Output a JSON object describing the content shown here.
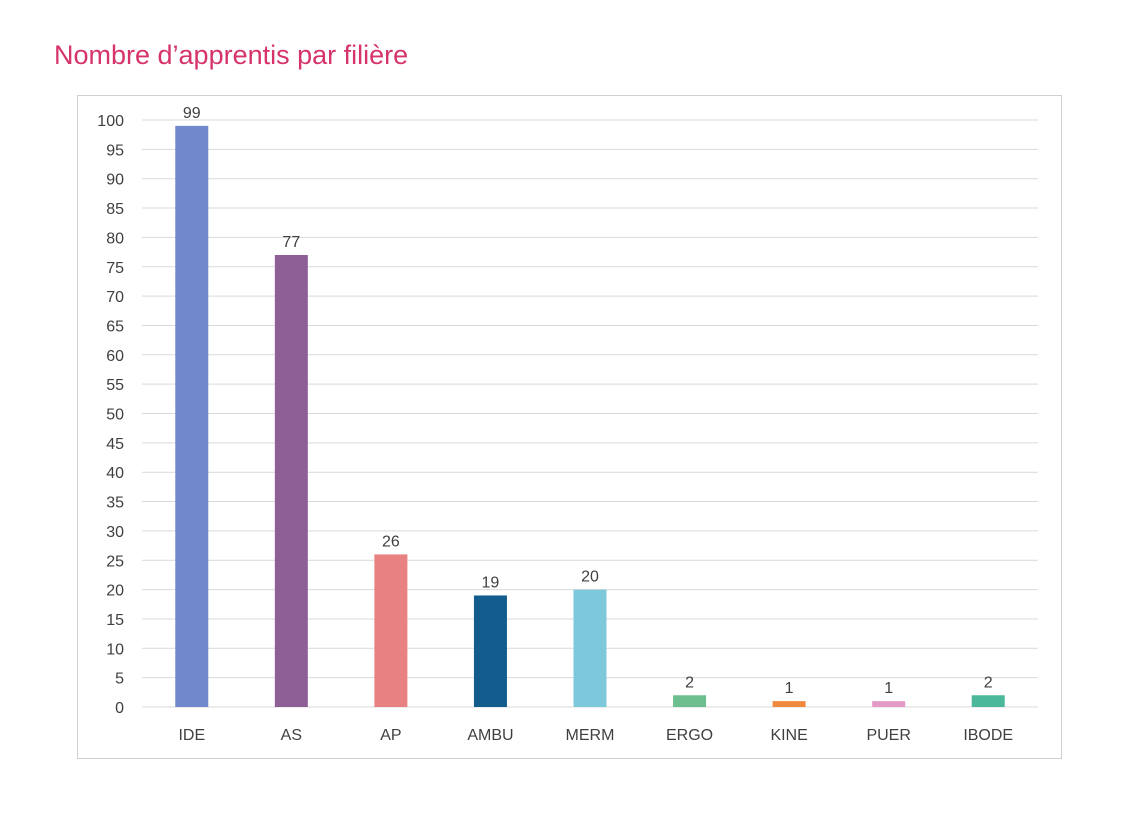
{
  "chart_data": {
    "type": "bar",
    "title": "Nombre d’apprentis par filière",
    "xlabel": "",
    "ylabel": "",
    "categories": [
      "IDE",
      "AS",
      "AP",
      "AMBU",
      "MERM",
      "ERGO",
      "KINE",
      "PUER",
      "IBODE"
    ],
    "values": [
      99,
      77,
      26,
      19,
      20,
      2,
      1,
      1,
      2
    ],
    "colors": [
      "#7089cc",
      "#8e5f96",
      "#e88282",
      "#135d8e",
      "#7ec8dc",
      "#6dbf8f",
      "#f0883e",
      "#e49ac6",
      "#4bb89c"
    ],
    "ylim": [
      0,
      100
    ],
    "yticks": [
      0,
      5,
      10,
      15,
      20,
      25,
      30,
      35,
      40,
      45,
      50,
      55,
      60,
      65,
      70,
      75,
      80,
      85,
      90,
      95,
      100
    ],
    "grid": true,
    "legend": "none"
  }
}
